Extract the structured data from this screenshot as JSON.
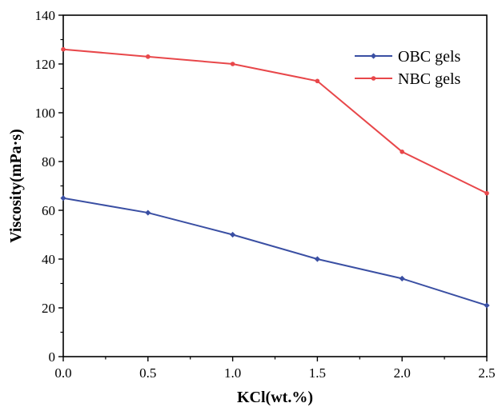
{
  "chart_data": {
    "type": "line",
    "title": "",
    "xlabel": "KCl(wt.%)",
    "ylabel": "Viscosity(mPa·s)",
    "x": [
      0.0,
      0.5,
      1.0,
      1.5,
      2.0,
      2.5
    ],
    "x_tick_labels": [
      "0.0",
      "0.5",
      "1.0",
      "1.5",
      "2.0",
      "2.5"
    ],
    "y_tick_labels": [
      "0",
      "20",
      "40",
      "60",
      "80",
      "100",
      "120",
      "140"
    ],
    "xlim": [
      0,
      2.5
    ],
    "ylim": [
      0,
      140
    ],
    "grid": false,
    "legend_position": "top-right",
    "series": [
      {
        "name": "OBC gels",
        "color": "#3a4fa3",
        "marker": "diamond",
        "values": [
          65,
          59,
          50,
          40,
          32,
          21
        ]
      },
      {
        "name": "NBC gels",
        "color": "#e8474a",
        "marker": "circle",
        "values": [
          126,
          123,
          120,
          113,
          84,
          67
        ]
      }
    ]
  }
}
